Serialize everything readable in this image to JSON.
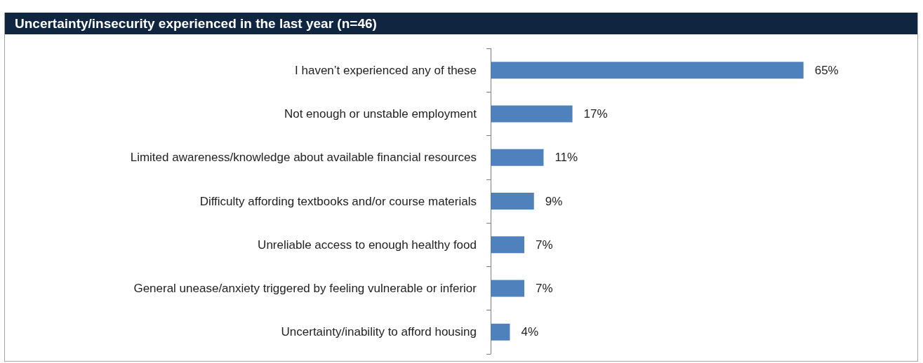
{
  "chart_data": {
    "type": "bar",
    "orientation": "horizontal",
    "title": "Uncertainty/insecurity experienced in the last year (n=46)",
    "categories": [
      "I haven’t experienced any of these",
      "Not enough or unstable employment",
      "Limited awareness/knowledge about available financial resources",
      "Difficulty affording textbooks and/or course materials",
      "Unreliable access to enough healthy food",
      "General unease/anxiety triggered by feeling vulnerable or inferior",
      "Uncertainty/inability to afford housing"
    ],
    "values": [
      65,
      17,
      11,
      9,
      7,
      7,
      4
    ],
    "value_labels": [
      "65%",
      "17%",
      "11%",
      "9%",
      "7%",
      "7%",
      "4%"
    ],
    "color": "#4f81bd"
  }
}
